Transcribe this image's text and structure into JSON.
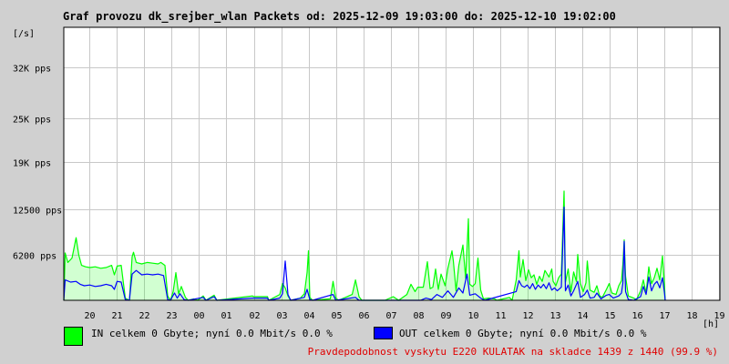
{
  "title": "Graf provozu dk_srejber_wlan Packets od: 2025-12-09 19:03:00 do: 2025-12-10 19:02:00",
  "chart_data": {
    "type": "area",
    "ylabel": "[/s]",
    "xlabel": "[h]",
    "y_ticks": [
      {
        "value": 6200,
        "label": "6200 pps"
      },
      {
        "value": 12500,
        "label": "12500 pps"
      },
      {
        "value": 19000,
        "label": "19K pps"
      },
      {
        "value": 25000,
        "label": "25K pps"
      },
      {
        "value": 32000,
        "label": "32K pps"
      }
    ],
    "ylim": [
      0,
      37500
    ],
    "x_ticks": [
      "20",
      "21",
      "22",
      "23",
      "00",
      "01",
      "02",
      "03",
      "04",
      "05",
      "06",
      "07",
      "08",
      "09",
      "10",
      "11",
      "12",
      "13",
      "14",
      "15",
      "16",
      "17",
      "18",
      "19"
    ],
    "grid": true,
    "series": [
      {
        "name": "IN",
        "color": "#00ff00",
        "style": "area",
        "values": [
          [
            19.05,
            0
          ],
          [
            19.1,
            6500
          ],
          [
            19.2,
            5200
          ],
          [
            19.35,
            5800
          ],
          [
            19.5,
            8600
          ],
          [
            19.6,
            6200
          ],
          [
            19.7,
            4800
          ],
          [
            19.85,
            4600
          ],
          [
            20.0,
            4500
          ],
          [
            20.2,
            4600
          ],
          [
            20.4,
            4400
          ],
          [
            20.6,
            4500
          ],
          [
            20.8,
            4800
          ],
          [
            20.9,
            3500
          ],
          [
            21.0,
            4700
          ],
          [
            21.15,
            4800
          ],
          [
            21.3,
            300
          ],
          [
            21.45,
            0
          ],
          [
            21.55,
            6000
          ],
          [
            21.6,
            6600
          ],
          [
            21.7,
            5200
          ],
          [
            21.9,
            5000
          ],
          [
            22.1,
            5200
          ],
          [
            22.3,
            5100
          ],
          [
            22.5,
            5000
          ],
          [
            22.6,
            5200
          ],
          [
            22.75,
            4800
          ],
          [
            22.85,
            600
          ],
          [
            22.95,
            0
          ],
          [
            23.05,
            1200
          ],
          [
            23.15,
            3800
          ],
          [
            23.25,
            900
          ],
          [
            23.35,
            1900
          ],
          [
            23.5,
            400
          ],
          [
            23.6,
            0
          ],
          [
            23.8,
            200
          ],
          [
            23.95,
            0
          ],
          [
            24.15,
            600
          ],
          [
            24.25,
            0
          ],
          [
            24.55,
            700
          ],
          [
            24.65,
            0
          ],
          [
            25.95,
            600
          ],
          [
            26.0,
            500
          ],
          [
            26.5,
            500
          ],
          [
            26.55,
            0
          ],
          [
            26.95,
            800
          ],
          [
            27.05,
            2300
          ],
          [
            27.15,
            1700
          ],
          [
            27.25,
            600
          ],
          [
            27.35,
            0
          ],
          [
            27.7,
            300
          ],
          [
            27.85,
            900
          ],
          [
            27.95,
            3800
          ],
          [
            28.0,
            6800
          ],
          [
            28.05,
            400
          ],
          [
            28.15,
            0
          ],
          [
            28.8,
            200
          ],
          [
            28.9,
            2600
          ],
          [
            29.0,
            300
          ],
          [
            29.1,
            0
          ],
          [
            29.6,
            800
          ],
          [
            29.72,
            2800
          ],
          [
            29.85,
            500
          ],
          [
            29.95,
            0
          ],
          [
            30.8,
            0
          ],
          [
            31.1,
            500
          ],
          [
            31.3,
            0
          ],
          [
            31.6,
            800
          ],
          [
            31.75,
            2200
          ],
          [
            31.9,
            1200
          ],
          [
            32.0,
            1800
          ],
          [
            32.2,
            1800
          ],
          [
            32.35,
            5300
          ],
          [
            32.45,
            1600
          ],
          [
            32.55,
            1800
          ],
          [
            32.65,
            4300
          ],
          [
            32.75,
            1500
          ],
          [
            32.85,
            3600
          ],
          [
            33.0,
            2000
          ],
          [
            33.1,
            4400
          ],
          [
            33.25,
            6800
          ],
          [
            33.3,
            5400
          ],
          [
            33.4,
            1300
          ],
          [
            33.5,
            4800
          ],
          [
            33.65,
            7600
          ],
          [
            33.75,
            3000
          ],
          [
            33.85,
            11200
          ],
          [
            33.9,
            2200
          ],
          [
            34.0,
            1900
          ],
          [
            34.1,
            2300
          ],
          [
            34.2,
            5800
          ],
          [
            34.3,
            1400
          ],
          [
            34.4,
            200
          ],
          [
            34.6,
            300
          ],
          [
            34.8,
            200
          ],
          [
            34.9,
            0
          ],
          [
            35.35,
            400
          ],
          [
            35.45,
            0
          ],
          [
            35.6,
            2800
          ],
          [
            35.7,
            6800
          ],
          [
            35.75,
            3200
          ],
          [
            35.85,
            5600
          ],
          [
            35.95,
            2700
          ],
          [
            36.05,
            4200
          ],
          [
            36.15,
            3100
          ],
          [
            36.25,
            3500
          ],
          [
            36.35,
            2200
          ],
          [
            36.45,
            3300
          ],
          [
            36.55,
            2600
          ],
          [
            36.65,
            4100
          ],
          [
            36.8,
            3200
          ],
          [
            36.9,
            4300
          ],
          [
            36.95,
            2600
          ],
          [
            37.05,
            2000
          ],
          [
            37.15,
            3100
          ],
          [
            37.25,
            3600
          ],
          [
            37.35,
            15000
          ],
          [
            37.4,
            2500
          ],
          [
            37.5,
            4300
          ],
          [
            37.6,
            1200
          ],
          [
            37.7,
            3900
          ],
          [
            37.8,
            2600
          ],
          [
            37.85,
            6300
          ],
          [
            37.95,
            2300
          ],
          [
            38.05,
            1200
          ],
          [
            38.15,
            2400
          ],
          [
            38.2,
            5400
          ],
          [
            38.3,
            1400
          ],
          [
            38.45,
            1100
          ],
          [
            38.55,
            2000
          ],
          [
            38.65,
            600
          ],
          [
            38.75,
            400
          ],
          [
            38.9,
            1500
          ],
          [
            39.0,
            2300
          ],
          [
            39.1,
            1000
          ],
          [
            39.25,
            800
          ],
          [
            39.35,
            2000
          ],
          [
            39.45,
            2700
          ],
          [
            39.5,
            4900
          ],
          [
            39.55,
            8300
          ],
          [
            39.6,
            3300
          ],
          [
            39.7,
            600
          ],
          [
            39.9,
            300
          ],
          [
            40.0,
            100
          ],
          [
            40.15,
            1300
          ],
          [
            40.25,
            2800
          ],
          [
            40.35,
            1000
          ],
          [
            40.45,
            4600
          ],
          [
            40.55,
            2300
          ],
          [
            40.65,
            3100
          ],
          [
            40.75,
            4400
          ],
          [
            40.85,
            2800
          ],
          [
            40.95,
            6100
          ],
          [
            41.02,
            2400
          ],
          [
            41.05,
            0
          ]
        ]
      },
      {
        "name": "OUT",
        "color": "#0000ff",
        "style": "line",
        "values": [
          [
            19.05,
            0
          ],
          [
            19.1,
            2800
          ],
          [
            19.3,
            2500
          ],
          [
            19.5,
            2600
          ],
          [
            19.65,
            2200
          ],
          [
            19.8,
            2000
          ],
          [
            20.0,
            2100
          ],
          [
            20.2,
            1900
          ],
          [
            20.4,
            2000
          ],
          [
            20.6,
            2200
          ],
          [
            20.8,
            2000
          ],
          [
            20.9,
            1500
          ],
          [
            21.0,
            2600
          ],
          [
            21.15,
            2500
          ],
          [
            21.3,
            100
          ],
          [
            21.45,
            0
          ],
          [
            21.55,
            3600
          ],
          [
            21.7,
            4100
          ],
          [
            21.9,
            3500
          ],
          [
            22.1,
            3600
          ],
          [
            22.3,
            3500
          ],
          [
            22.5,
            3600
          ],
          [
            22.7,
            3400
          ],
          [
            22.85,
            100
          ],
          [
            22.95,
            0
          ],
          [
            23.1,
            1000
          ],
          [
            23.2,
            300
          ],
          [
            23.3,
            900
          ],
          [
            23.45,
            100
          ],
          [
            23.6,
            0
          ],
          [
            24.15,
            400
          ],
          [
            24.25,
            0
          ],
          [
            24.55,
            500
          ],
          [
            24.65,
            0
          ],
          [
            25.95,
            300
          ],
          [
            26.5,
            300
          ],
          [
            26.55,
            0
          ],
          [
            26.95,
            300
          ],
          [
            27.05,
            900
          ],
          [
            27.15,
            5400
          ],
          [
            27.25,
            800
          ],
          [
            27.35,
            0
          ],
          [
            27.85,
            400
          ],
          [
            27.95,
            1500
          ],
          [
            28.05,
            100
          ],
          [
            28.15,
            0
          ],
          [
            28.9,
            800
          ],
          [
            29.0,
            0
          ],
          [
            29.72,
            400
          ],
          [
            29.85,
            0
          ],
          [
            32.1,
            0
          ],
          [
            32.3,
            300
          ],
          [
            32.5,
            100
          ],
          [
            32.7,
            800
          ],
          [
            32.9,
            400
          ],
          [
            33.1,
            1300
          ],
          [
            33.3,
            400
          ],
          [
            33.5,
            1700
          ],
          [
            33.65,
            1000
          ],
          [
            33.8,
            3600
          ],
          [
            33.9,
            700
          ],
          [
            34.1,
            900
          ],
          [
            34.3,
            300
          ],
          [
            34.45,
            0
          ],
          [
            35.6,
            1200
          ],
          [
            35.7,
            2700
          ],
          [
            35.8,
            2000
          ],
          [
            35.9,
            1800
          ],
          [
            36.0,
            2100
          ],
          [
            36.1,
            1600
          ],
          [
            36.2,
            2300
          ],
          [
            36.3,
            1500
          ],
          [
            36.4,
            2100
          ],
          [
            36.5,
            1700
          ],
          [
            36.6,
            2200
          ],
          [
            36.7,
            1600
          ],
          [
            36.8,
            2400
          ],
          [
            36.9,
            1400
          ],
          [
            37.0,
            1700
          ],
          [
            37.1,
            1300
          ],
          [
            37.25,
            1800
          ],
          [
            37.35,
            12800
          ],
          [
            37.4,
            1300
          ],
          [
            37.5,
            2100
          ],
          [
            37.6,
            600
          ],
          [
            37.7,
            1300
          ],
          [
            37.85,
            2600
          ],
          [
            37.95,
            400
          ],
          [
            38.1,
            800
          ],
          [
            38.2,
            1400
          ],
          [
            38.3,
            300
          ],
          [
            38.45,
            400
          ],
          [
            38.55,
            1000
          ],
          [
            38.7,
            200
          ],
          [
            38.9,
            700
          ],
          [
            39.0,
            800
          ],
          [
            39.15,
            300
          ],
          [
            39.35,
            600
          ],
          [
            39.45,
            1000
          ],
          [
            39.5,
            2300
          ],
          [
            39.55,
            8100
          ],
          [
            39.6,
            1200
          ],
          [
            39.7,
            100
          ],
          [
            39.9,
            0
          ],
          [
            40.15,
            500
          ],
          [
            40.25,
            1900
          ],
          [
            40.35,
            800
          ],
          [
            40.45,
            3200
          ],
          [
            40.55,
            1300
          ],
          [
            40.65,
            2200
          ],
          [
            40.75,
            2600
          ],
          [
            40.85,
            1700
          ],
          [
            40.95,
            3100
          ],
          [
            41.02,
            1100
          ],
          [
            41.05,
            0
          ]
        ]
      }
    ]
  },
  "legend": {
    "in_text": "IN celkem 0 Gbyte; nyní   0.0 Mbit/s 0.0 %",
    "out_text": "OUT celkem 0 Gbyte; nyní   0.0 Mbit/s 0.0 %",
    "in_color": "#00ff00",
    "out_color": "#0000ff"
  },
  "note": "Pravdepodobnost vyskytu E220 KULATAK na skladce 1439 z 1440 (99.9 %)"
}
